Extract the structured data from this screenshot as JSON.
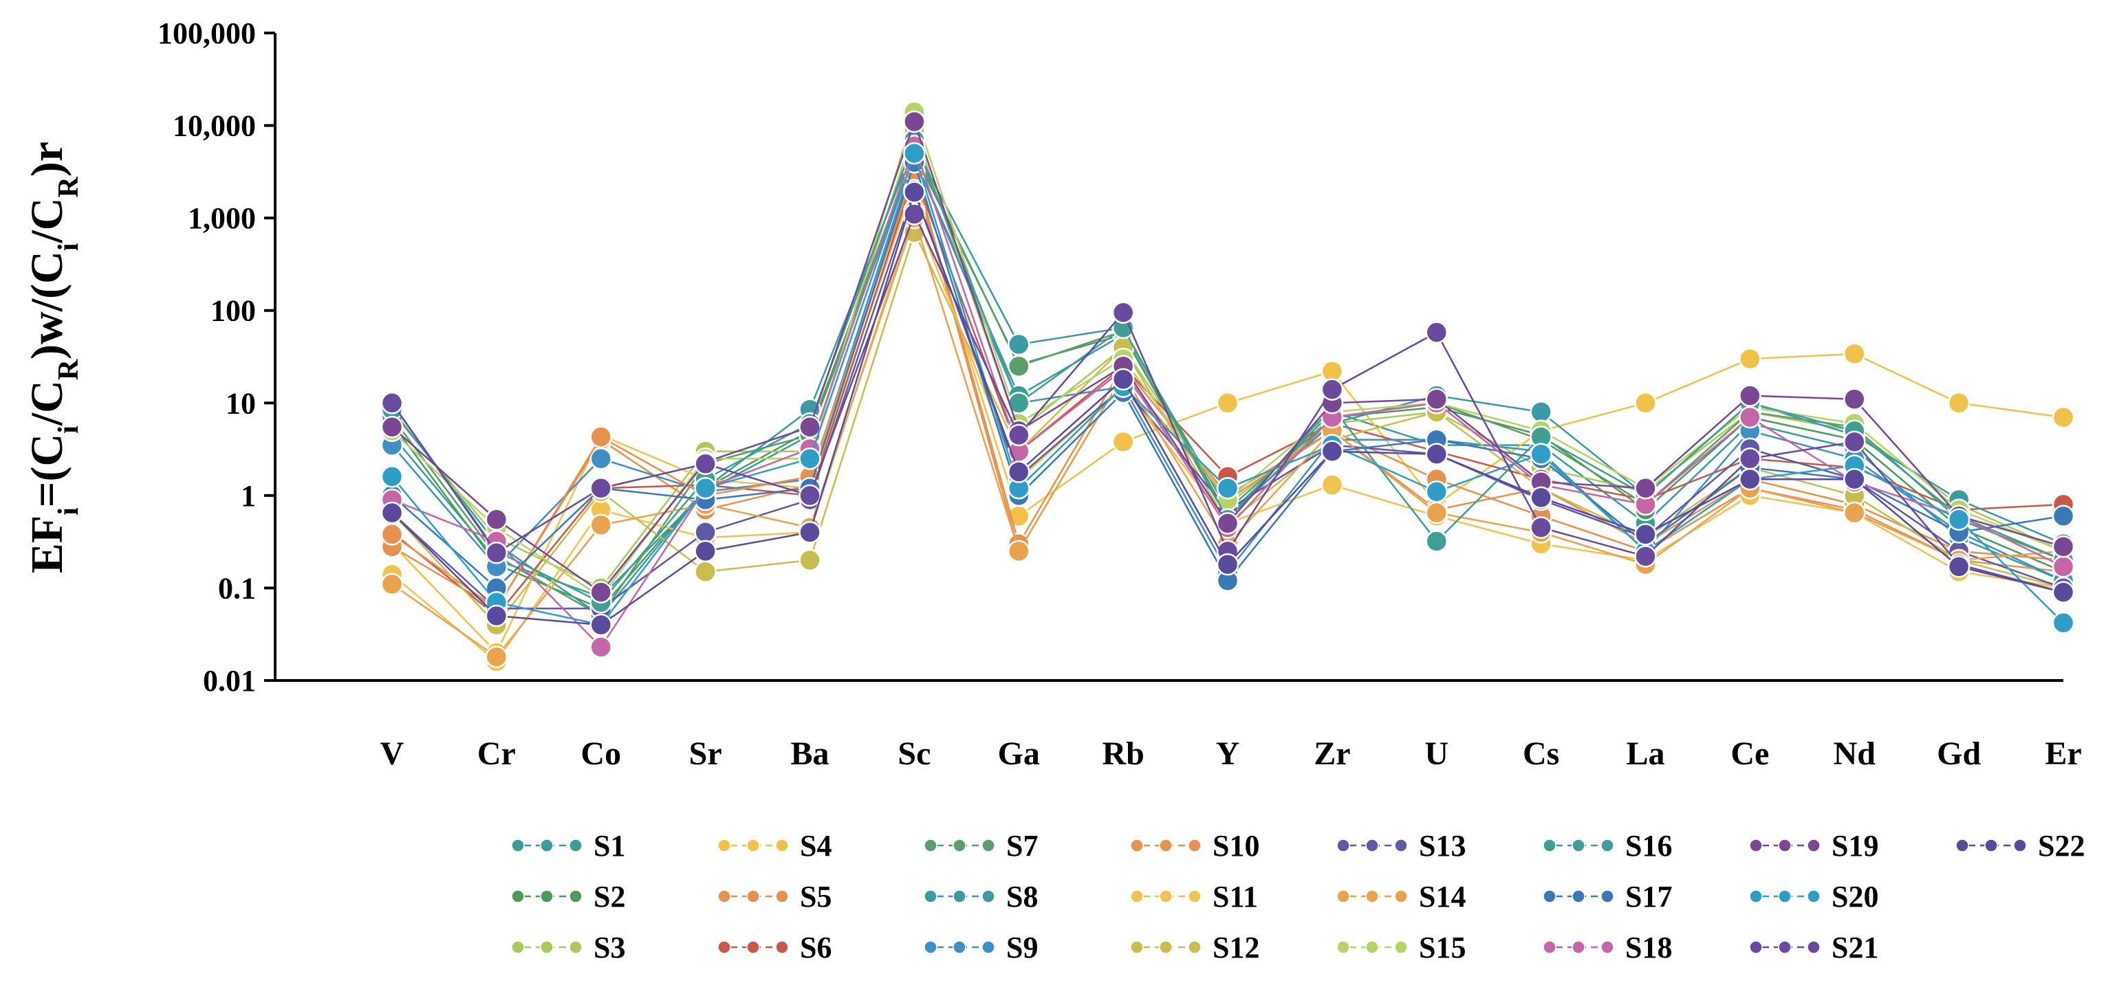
{
  "chart_data": {
    "type": "line",
    "title": "",
    "xlabel": "",
    "ylabel": "EFi=(Ci/CR)w/(Ci/CR)r",
    "ylabel_parts": [
      {
        "text": "EF",
        "sub": false
      },
      {
        "text": "i",
        "sub": true
      },
      {
        "text": "=(C",
        "sub": false
      },
      {
        "text": "i",
        "sub": true
      },
      {
        "text": "/C",
        "sub": false
      },
      {
        "text": "R",
        "sub": true
      },
      {
        "text": ")w/(C",
        "sub": false
      },
      {
        "text": "i",
        "sub": true
      },
      {
        "text": "/C",
        "sub": false
      },
      {
        "text": "R",
        "sub": true
      },
      {
        "text": ")r",
        "sub": false
      }
    ],
    "y_scale": "log",
    "ylim": [
      0.01,
      100000
    ],
    "y_ticks": [
      0.01,
      0.1,
      1,
      10,
      100,
      1000,
      10000,
      100000
    ],
    "y_tick_labels": [
      "0.01",
      "0.1",
      "1",
      "10",
      "100",
      "1,000",
      "10,000",
      "100,000"
    ],
    "grid": false,
    "legend_position": "bottom",
    "categories": [
      "V",
      "Cr",
      "Co",
      "Sr",
      "Ba",
      "Sc",
      "Ga",
      "Rb",
      "Y",
      "Zr",
      "U",
      "Cs",
      "La",
      "Ce",
      "Nd",
      "Gd",
      "Er"
    ],
    "series": [
      {
        "name": "S1",
        "color": "#3a9d9a",
        "values": [
          4.5,
          0.2,
          0.08,
          1.1,
          4.5,
          4500,
          12,
          55,
          0.6,
          8,
          3.5,
          3.5,
          0.5,
          6,
          3.2,
          0.35,
          0.12
        ]
      },
      {
        "name": "S2",
        "color": "#4e9a5c",
        "values": [
          6,
          0.18,
          0.06,
          1.2,
          5,
          5000,
          26,
          55,
          0.55,
          7,
          9,
          4.5,
          0.7,
          7,
          4,
          0.45,
          0.15
        ]
      },
      {
        "name": "S3",
        "color": "#a9c95a",
        "values": [
          8,
          0.35,
          0.1,
          3,
          3,
          9000,
          5,
          40,
          0.8,
          6,
          8,
          2,
          1.1,
          8,
          5,
          0.8,
          0.25
        ]
      },
      {
        "name": "S4",
        "color": "#f0c24a",
        "values": [
          0.3,
          0.02,
          4.5,
          1.5,
          1.2,
          2500,
          0.6,
          3.8,
          10,
          22,
          0.8,
          5,
          10,
          30,
          34,
          10,
          7
        ]
      },
      {
        "name": "S5",
        "color": "#e8904f",
        "values": [
          0.28,
          0.06,
          4,
          0.7,
          1.3,
          3500,
          0.3,
          25,
          1,
          5,
          1.5,
          0.6,
          0.25,
          1.2,
          0.7,
          0.2,
          0.15
        ]
      },
      {
        "name": "S6",
        "color": "#c9584a",
        "values": [
          0.4,
          0.05,
          1.2,
          1.3,
          1,
          3000,
          3,
          25,
          1.6,
          6,
          3,
          1.5,
          0.9,
          2.5,
          2,
          0.7,
          0.8
        ]
      },
      {
        "name": "S7",
        "color": "#5a9e6a",
        "values": [
          7,
          0.22,
          0.05,
          2.2,
          4.5,
          5500,
          25,
          60,
          0.7,
          7,
          10,
          4,
          0.8,
          8,
          5.5,
          0.55,
          0.2
        ]
      },
      {
        "name": "S8",
        "color": "#3b9aa3",
        "values": [
          8.5,
          0.3,
          0.05,
          1.2,
          8.5,
          6000,
          43,
          65,
          0.6,
          6,
          12,
          8,
          1,
          10,
          4.5,
          0.9,
          0.3
        ]
      },
      {
        "name": "S9",
        "color": "#3f8fc6",
        "values": [
          3.5,
          0.17,
          2.5,
          1.1,
          1.5,
          4500,
          10,
          15,
          0.15,
          4,
          4,
          3,
          0.25,
          5,
          2.5,
          0.4,
          0.12
        ]
      },
      {
        "name": "S10",
        "color": "#e8914e",
        "values": [
          0.38,
          0.06,
          4.3,
          1,
          1.6,
          3200,
          0.25,
          20,
          0.9,
          5,
          0.7,
          1.2,
          0.3,
          1.5,
          0.8,
          0.25,
          0.2
        ]
      },
      {
        "name": "S11",
        "color": "#f2c24f",
        "values": [
          0.14,
          0.016,
          0.7,
          0.35,
          0.4,
          1200,
          1.5,
          15,
          0.5,
          1.3,
          0.6,
          0.3,
          0.2,
          1,
          0.65,
          0.15,
          0.1
        ]
      },
      {
        "name": "S12",
        "color": "#c8bd4e",
        "values": [
          0.65,
          0.04,
          1.1,
          0.15,
          0.2,
          700,
          3,
          40,
          0.5,
          4,
          8,
          1.2,
          0.35,
          2,
          1,
          0.2,
          0.1
        ]
      },
      {
        "name": "S13",
        "color": "#5e5aa8",
        "values": [
          0.65,
          0.06,
          0.06,
          0.4,
          0.9,
          2000,
          1.6,
          15,
          0.7,
          3.5,
          2.8,
          0.9,
          0.35,
          3.2,
          1.5,
          0.25,
          0.1
        ]
      },
      {
        "name": "S14",
        "color": "#eaa24f",
        "values": [
          0.11,
          0.018,
          0.48,
          0.8,
          0.45,
          1000,
          0.25,
          20,
          0.3,
          5,
          0.65,
          0.4,
          0.18,
          1.2,
          0.65,
          0.2,
          0.25
        ]
      },
      {
        "name": "S15",
        "color": "#b5d366",
        "values": [
          5,
          0.45,
          0.08,
          2.5,
          2.5,
          14000,
          6,
          30,
          0.9,
          8,
          10,
          5,
          1.2,
          9,
          6,
          0.7,
          0.25
        ]
      },
      {
        "name": "S16",
        "color": "#3f9f94",
        "values": [
          10,
          0.25,
          0.07,
          1.5,
          6,
          7000,
          10,
          65,
          0.55,
          9,
          0.32,
          4.3,
          1,
          10,
          5,
          0.6,
          0.2
        ]
      },
      {
        "name": "S17",
        "color": "#3a78b8",
        "values": [
          1,
          0.1,
          1.2,
          0.9,
          1.2,
          4000,
          1,
          13,
          0.12,
          3,
          4,
          2.5,
          0.3,
          2,
          1.5,
          0.4,
          0.6
        ]
      },
      {
        "name": "S18",
        "color": "#c666a6",
        "values": [
          0.9,
          0.32,
          0.023,
          1.2,
          3.2,
          6000,
          3,
          23,
          0.45,
          7,
          10,
          1.3,
          0.8,
          7,
          1.4,
          0.6,
          0.17
        ]
      },
      {
        "name": "S19",
        "color": "#7a4795",
        "values": [
          5.5,
          0.55,
          0.09,
          2.3,
          5.5,
          11000,
          5,
          25,
          0.5,
          10,
          11,
          1.4,
          1.2,
          12,
          11,
          0.6,
          0.28
        ]
      },
      {
        "name": "S20",
        "color": "#2e9ec8",
        "values": [
          1.6,
          0.07,
          0.04,
          1.2,
          2.5,
          5000,
          1.2,
          15,
          1.2,
          3.5,
          1.1,
          2.8,
          0.25,
          1.5,
          2.1,
          0.55,
          0.042
        ]
      },
      {
        "name": "S21",
        "color": "#6a4a9e",
        "values": [
          10,
          0.24,
          1.2,
          2.2,
          1,
          1100,
          4.5,
          95,
          0.25,
          14,
          58,
          0.45,
          0.22,
          2.5,
          3.8,
          0.18,
          0.09
        ]
      },
      {
        "name": "S22",
        "color": "#5a4a9e",
        "values": [
          0.65,
          0.05,
          0.04,
          0.25,
          0.4,
          1900,
          1.8,
          18,
          0.18,
          3,
          2.8,
          0.95,
          0.38,
          1.5,
          1.5,
          0.17,
          0.09
        ]
      }
    ]
  }
}
